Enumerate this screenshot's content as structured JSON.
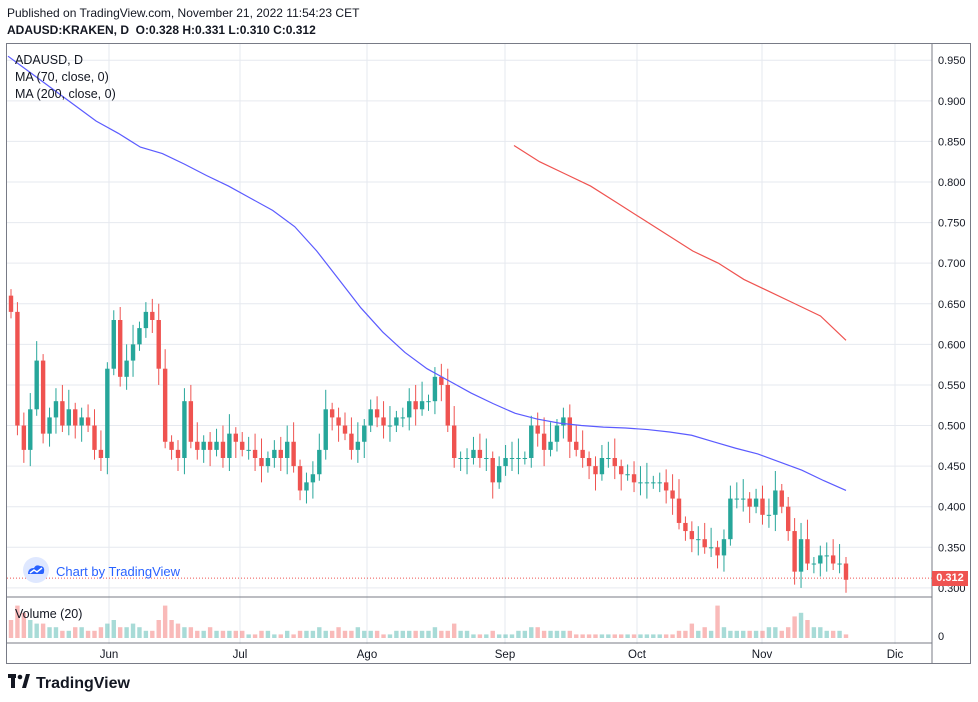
{
  "header": {
    "published": "Published on TradingView.com, November 21, 2022 11:54:23 CET",
    "symbol_line": "ADAUSD:KRAKEN, D",
    "ohlc": "O:0.328 H:0.331 L:0.310 C:0.312"
  },
  "legend": {
    "symbol": "ADAUSD, D",
    "ma70": "MA (70, close, 0)",
    "ma200": "MA (200, close, 0)",
    "volume": "Volume (20)"
  },
  "watermark": "Chart by TradingView",
  "footer": "TradingView",
  "last_price_label": "0.312",
  "colors": {
    "up": "#26a69a",
    "down": "#ef5350",
    "ma70": "#5b5bff",
    "ma200": "#ef5350",
    "grid": "#e6e9ef"
  },
  "chart_data": {
    "type": "candlestick",
    "x_ticks": [
      "Jun",
      "Jul",
      "Ago",
      "Sep",
      "Oct",
      "Nov",
      "Dic"
    ],
    "y_ticks": [
      "0.950",
      "0.900",
      "0.850",
      "0.800",
      "0.750",
      "0.700",
      "0.650",
      "0.600",
      "0.550",
      "0.500",
      "0.450",
      "0.400",
      "0.350",
      "0.300"
    ],
    "volume_tick": "0",
    "ylim": [
      0.29,
      0.97
    ],
    "candles_close": [
      0.64,
      0.5,
      0.47,
      0.52,
      0.58,
      0.49,
      0.51,
      0.53,
      0.5,
      0.52,
      0.5,
      0.51,
      0.5,
      0.47,
      0.46,
      0.57,
      0.63,
      0.56,
      0.58,
      0.6,
      0.62,
      0.64,
      0.63,
      0.57,
      0.48,
      0.47,
      0.46,
      0.53,
      0.48,
      0.47,
      0.48,
      0.47,
      0.48,
      0.46,
      0.49,
      0.48,
      0.47,
      0.47,
      0.46,
      0.45,
      0.46,
      0.47,
      0.46,
      0.48,
      0.45,
      0.42,
      0.43,
      0.44,
      0.47,
      0.52,
      0.51,
      0.5,
      0.49,
      0.47,
      0.48,
      0.5,
      0.52,
      0.51,
      0.5,
      0.5,
      0.51,
      0.51,
      0.53,
      0.52,
      0.53,
      0.53,
      0.56,
      0.55,
      0.5,
      0.46,
      0.46,
      0.46,
      0.47,
      0.46,
      0.46,
      0.43,
      0.45,
      0.46,
      0.46,
      0.46,
      0.46,
      0.5,
      0.49,
      0.47,
      0.48,
      0.5,
      0.51,
      0.48,
      0.47,
      0.46,
      0.45,
      0.44,
      0.46,
      0.46,
      0.45,
      0.44,
      0.44,
      0.43,
      0.43,
      0.43,
      0.43,
      0.43,
      0.42,
      0.41,
      0.38,
      0.37,
      0.36,
      0.36,
      0.35,
      0.35,
      0.34,
      0.36,
      0.41,
      0.41,
      0.41,
      0.4,
      0.41,
      0.39,
      0.39,
      0.42,
      0.4,
      0.37,
      0.32,
      0.36,
      0.33,
      0.33,
      0.34,
      0.34,
      0.33,
      0.33,
      0.31
    ],
    "ma70": [
      0.955,
      0.935,
      0.915,
      0.895,
      0.875,
      0.86,
      0.843,
      0.835,
      0.822,
      0.808,
      0.795,
      0.78,
      0.765,
      0.745,
      0.715,
      0.68,
      0.645,
      0.615,
      0.59,
      0.57,
      0.555,
      0.54,
      0.527,
      0.515,
      0.508,
      0.503,
      0.5,
      0.498,
      0.497,
      0.495,
      0.492,
      0.488,
      0.48,
      0.472,
      0.465,
      0.455,
      0.445,
      0.432,
      0.42
    ],
    "ma200": [
      0.845,
      0.825,
      0.81,
      0.795,
      0.775,
      0.755,
      0.735,
      0.715,
      0.7,
      0.68,
      0.665,
      0.65,
      0.635,
      0.605
    ],
    "volume_relative": [
      0.5,
      0.9,
      0.7,
      0.5,
      0.4,
      0.4,
      0.3,
      0.3,
      0.2,
      0.2,
      0.3,
      0.3,
      0.2,
      0.2,
      0.3,
      0.4,
      0.5,
      0.3,
      0.3,
      0.4,
      0.3,
      0.2,
      0.2,
      0.5,
      0.9,
      0.5,
      0.4,
      0.3,
      0.3,
      0.2,
      0.2,
      0.3,
      0.2,
      0.2,
      0.2,
      0.2,
      0.2,
      0.1,
      0.1,
      0.2,
      0.2,
      0.1,
      0.1,
      0.2,
      0.1,
      0.2,
      0.2,
      0.2,
      0.3,
      0.2,
      0.2,
      0.3,
      0.2,
      0.2,
      0.3,
      0.2,
      0.2,
      0.2,
      0.1,
      0.1,
      0.2,
      0.2,
      0.2,
      0.2,
      0.2,
      0.2,
      0.3,
      0.2,
      0.2,
      0.4,
      0.2,
      0.2,
      0.1,
      0.1,
      0.1,
      0.2,
      0.1,
      0.1,
      0.1,
      0.2,
      0.2,
      0.3,
      0.3,
      0.2,
      0.2,
      0.2,
      0.2,
      0.2,
      0.1,
      0.1,
      0.1,
      0.1,
      0.1,
      0.1,
      0.1,
      0.1,
      0.1,
      0.1,
      0.1,
      0.1,
      0.1,
      0.1,
      0.1,
      0.1,
      0.2,
      0.2,
      0.4,
      0.2,
      0.3,
      0.2,
      0.9,
      0.3,
      0.2,
      0.2,
      0.2,
      0.2,
      0.2,
      0.2,
      0.3,
      0.3,
      0.2,
      0.3,
      0.6,
      0.7,
      0.5,
      0.3,
      0.3,
      0.2,
      0.2,
      0.2,
      0.1
    ]
  }
}
